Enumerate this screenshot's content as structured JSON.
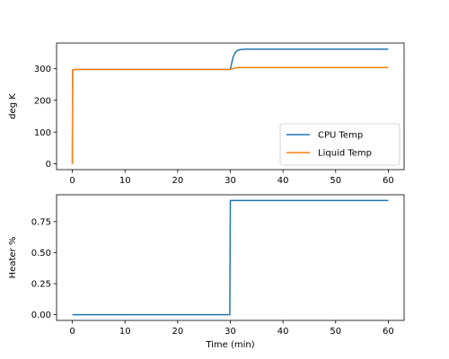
{
  "chart_data": [
    {
      "type": "line",
      "xlabel": "",
      "ylabel": "deg K",
      "xlim": [
        -3,
        63
      ],
      "ylim": [
        -18,
        380
      ],
      "xticks": [
        0,
        10,
        20,
        30,
        40,
        50,
        60
      ],
      "yticks": [
        0,
        100,
        200,
        300
      ],
      "legend_position": "lower-right",
      "series": [
        {
          "name": "CPU Temp",
          "color": "#1f77b4",
          "x": [
            0,
            0.05,
            1,
            10,
            20,
            29.9,
            30,
            30.2,
            30.5,
            31,
            31.5,
            32,
            33,
            35,
            40,
            50,
            60
          ],
          "y": [
            0,
            296,
            297,
            297,
            297,
            297,
            297,
            312,
            335,
            352,
            358,
            360,
            361,
            361,
            361,
            361,
            361
          ]
        },
        {
          "name": "Liquid Temp",
          "color": "#ff7f0e",
          "x": [
            0,
            0.05,
            1,
            10,
            20,
            29.9,
            30,
            30.5,
            31,
            32,
            35,
            40,
            50,
            60
          ],
          "y": [
            0,
            296,
            297,
            297,
            297,
            297,
            297,
            300,
            302,
            303,
            303,
            303,
            303,
            303
          ]
        }
      ]
    },
    {
      "type": "line",
      "xlabel": "Time (min)",
      "ylabel": "Heater %",
      "xlim": [
        -3,
        63
      ],
      "ylim": [
        -0.046,
        0.966
      ],
      "xticks": [
        0,
        10,
        20,
        30,
        40,
        50,
        60
      ],
      "yticks": [
        0.0,
        0.25,
        0.5,
        0.75
      ],
      "ytick_labels": [
        "0.00",
        "0.25",
        "0.50",
        "0.75"
      ],
      "series": [
        {
          "color": "#1f77b4",
          "x": [
            0,
            29.9,
            30,
            60
          ],
          "y": [
            0,
            0,
            0.92,
            0.92
          ]
        }
      ]
    }
  ]
}
